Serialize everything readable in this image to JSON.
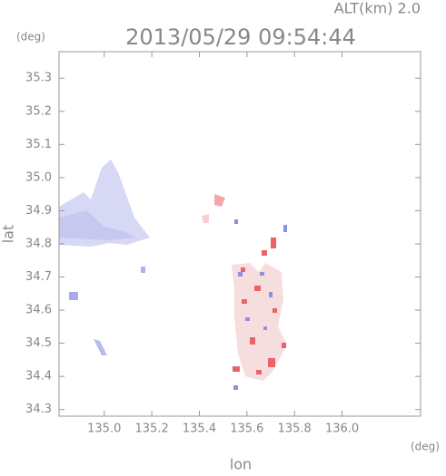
{
  "chart_data": {
    "type": "field",
    "title": "2013/05/29 09:54:44",
    "annotation": "ALT(km) 2.0",
    "x_label": "lon",
    "y_label": "lat",
    "x_unit": "(deg)",
    "y_unit": "(deg)",
    "xlim": [
      134.81,
      136.33
    ],
    "ylim": [
      34.28,
      35.38
    ],
    "xticks": [
      {
        "value": 135,
        "label": "135.0"
      },
      135.2,
      135.4,
      135.6,
      135.8,
      {
        "value": 136,
        "label": "136.0"
      }
    ],
    "yticks": [
      34.3,
      34.4,
      34.5,
      34.6,
      34.7,
      34.8,
      34.9,
      {
        "value": 35,
        "label": "35.0"
      },
      35.1,
      35.2,
      35.3
    ]
  }
}
